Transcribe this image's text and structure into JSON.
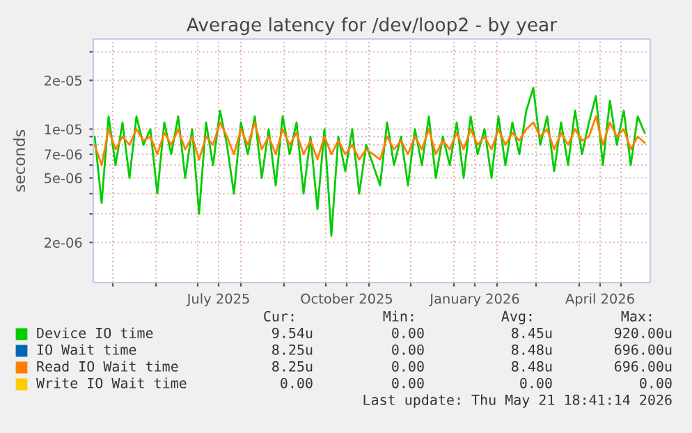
{
  "chart_data": {
    "type": "line",
    "title": "Average latency for /dev/loop2 - by year",
    "ylabel": "seconds",
    "x": [
      "2025-04-18",
      "2025-04-23",
      "2025-04-28",
      "2025-05-03",
      "2025-05-08",
      "2025-05-13",
      "2025-05-18",
      "2025-05-23",
      "2025-05-28",
      "2025-06-02",
      "2025-06-07",
      "2025-06-12",
      "2025-06-17",
      "2025-06-22",
      "2025-06-27",
      "2025-07-02",
      "2025-07-07",
      "2025-07-12",
      "2025-07-17",
      "2025-07-22",
      "2025-07-27",
      "2025-08-01",
      "2025-08-06",
      "2025-08-11",
      "2025-08-16",
      "2025-08-21",
      "2025-08-26",
      "2025-08-31",
      "2025-09-05",
      "2025-09-10",
      "2025-09-15",
      "2025-09-20",
      "2025-09-25",
      "2025-09-30",
      "2025-10-05",
      "2025-10-10",
      "2025-10-15",
      "2025-10-20",
      "2025-10-25",
      "2025-10-30",
      "2025-11-04",
      "2025-11-09",
      "2025-11-14",
      "2025-11-19",
      "2025-11-24",
      "2025-11-29",
      "2025-12-04",
      "2025-12-09",
      "2025-12-14",
      "2025-12-19",
      "2025-12-24",
      "2025-12-29",
      "2026-01-03",
      "2026-01-08",
      "2026-01-13",
      "2026-01-18",
      "2026-01-23",
      "2026-01-28",
      "2026-02-02",
      "2026-02-07",
      "2026-02-12",
      "2026-02-17",
      "2026-02-22",
      "2026-02-27",
      "2026-03-04",
      "2026-03-09",
      "2026-03-14",
      "2026-03-19",
      "2026-03-24",
      "2026-03-29",
      "2026-04-03",
      "2026-04-08",
      "2026-04-13",
      "2026-04-18",
      "2026-04-23",
      "2026-04-28",
      "2026-05-03",
      "2026-05-08",
      "2026-05-13",
      "2026-05-18"
    ],
    "series": [
      {
        "name": "Device IO time",
        "color": "#00cc00",
        "values": [
          9e-06,
          3.5e-06,
          1.2e-05,
          6e-06,
          1.1e-05,
          5e-06,
          1.2e-05,
          8e-06,
          1e-05,
          4e-06,
          1.1e-05,
          7e-06,
          1.2e-05,
          5e-06,
          1e-05,
          3e-06,
          1.1e-05,
          6e-06,
          1.3e-05,
          8e-06,
          4e-06,
          1.1e-05,
          7e-06,
          1.2e-05,
          5e-06,
          1e-05,
          4.5e-06,
          1.2e-05,
          7e-06,
          1.1e-05,
          4e-06,
          9e-06,
          3.2e-06,
          1e-05,
          2.2e-06,
          9e-06,
          5.5e-06,
          1e-05,
          4e-06,
          8e-06,
          6e-06,
          4.5e-06,
          1.1e-05,
          6e-06,
          9e-06,
          4.5e-06,
          1e-05,
          6e-06,
          1.2e-05,
          5e-06,
          9e-06,
          6e-06,
          1.1e-05,
          5e-06,
          1.2e-05,
          7e-06,
          1e-05,
          5e-06,
          1.2e-05,
          6e-06,
          1.1e-05,
          7e-06,
          1.3e-05,
          1.8e-05,
          8e-06,
          1.2e-05,
          5.5e-06,
          1.1e-05,
          6e-06,
          1.3e-05,
          7e-06,
          1.1e-05,
          1.6e-05,
          6e-06,
          1.5e-05,
          8e-06,
          1.3e-05,
          6e-06,
          1.2e-05,
          9.5e-06
        ]
      },
      {
        "name": "IO Wait time",
        "color": "#0066b3",
        "values": [
          null,
          null,
          null,
          null,
          null,
          null,
          null,
          null,
          null,
          null,
          null,
          null,
          null,
          null,
          null,
          null,
          null,
          null,
          null,
          null,
          null,
          null,
          null,
          null,
          null,
          null,
          null,
          null,
          null,
          null,
          null,
          null,
          null,
          null,
          null,
          null,
          null,
          null,
          null,
          null,
          null,
          null,
          null,
          null,
          null,
          null,
          null,
          null,
          null,
          null,
          null,
          null,
          null,
          null,
          null,
          null,
          null,
          null,
          null,
          null,
          null,
          null,
          null,
          null,
          null,
          null,
          null,
          null,
          null,
          null,
          null,
          null,
          null,
          null,
          null,
          null,
          null,
          null,
          null,
          null
        ]
      },
      {
        "name": "Read IO Wait time",
        "color": "#ff8000",
        "values": [
          8e-06,
          6e-06,
          1e-05,
          7.5e-06,
          9e-06,
          8e-06,
          1e-05,
          8.5e-06,
          9e-06,
          7e-06,
          9.5e-06,
          8e-06,
          1e-05,
          7.5e-06,
          9e-06,
          6.5e-06,
          9e-06,
          8e-06,
          1.1e-05,
          9e-06,
          7e-06,
          1e-05,
          8e-06,
          1.1e-05,
          7.5e-06,
          9e-06,
          7e-06,
          1e-05,
          8e-06,
          9.5e-06,
          7e-06,
          8.5e-06,
          6.5e-06,
          9e-06,
          7e-06,
          8.5e-06,
          7e-06,
          8e-06,
          6.5e-06,
          7.5e-06,
          7e-06,
          6.5e-06,
          9e-06,
          7.5e-06,
          8.5e-06,
          7e-06,
          9e-06,
          7.5e-06,
          1e-05,
          7e-06,
          8.5e-06,
          7.5e-06,
          9.5e-06,
          7.5e-06,
          1e-05,
          8e-06,
          9e-06,
          7.5e-06,
          1e-05,
          8e-06,
          9.5e-06,
          8.5e-06,
          1e-05,
          1.1e-05,
          9e-06,
          1e-05,
          7.5e-06,
          9.5e-06,
          8e-06,
          1e-05,
          8.5e-06,
          9e-06,
          1.2e-05,
          8e-06,
          1.1e-05,
          9e-06,
          1e-05,
          7.5e-06,
          9e-06,
          8.25e-06
        ]
      },
      {
        "name": "Write IO Wait time",
        "color": "#ffcc00",
        "values": [
          null,
          null,
          null,
          null,
          null,
          null,
          null,
          null,
          null,
          null,
          null,
          null,
          null,
          null,
          null,
          null,
          null,
          null,
          null,
          null,
          null,
          null,
          null,
          null,
          null,
          null,
          null,
          null,
          null,
          null,
          null,
          null,
          null,
          null,
          null,
          null,
          null,
          null,
          null,
          null,
          null,
          null,
          null,
          null,
          null,
          null,
          null,
          null,
          null,
          null,
          null,
          null,
          null,
          null,
          null,
          null,
          null,
          null,
          null,
          null,
          null,
          null,
          null,
          null,
          null,
          null,
          null,
          null,
          null,
          null,
          null,
          null,
          null,
          null,
          null,
          null,
          null,
          null,
          null,
          null
        ]
      }
    ],
    "xlim": [
      "2025-04-17",
      "2026-05-22"
    ],
    "xticks": [
      {
        "value": "2025-05-01",
        "label": null
      },
      {
        "value": "2025-06-01",
        "label": null
      },
      {
        "value": "2025-07-01",
        "label": null
      },
      {
        "value": "2025-07-16",
        "label": "July 2025"
      },
      {
        "value": "2025-08-01",
        "label": null
      },
      {
        "value": "2025-09-01",
        "label": null
      },
      {
        "value": "2025-10-01",
        "label": null
      },
      {
        "value": "2025-10-16",
        "label": "October 2025"
      },
      {
        "value": "2025-11-01",
        "label": null
      },
      {
        "value": "2025-12-01",
        "label": null
      },
      {
        "value": "2026-01-01",
        "label": null
      },
      {
        "value": "2026-01-16",
        "label": "January 2026"
      },
      {
        "value": "2026-02-01",
        "label": null
      },
      {
        "value": "2026-03-01",
        "label": null
      },
      {
        "value": "2026-04-01",
        "label": null
      },
      {
        "value": "2026-04-16",
        "label": "April 2026"
      },
      {
        "value": "2026-05-01",
        "label": null
      }
    ],
    "ylim": [
      1.13e-06,
      3.6e-05
    ],
    "yticks": [
      2e-06,
      {
        "value": 3e-06,
        "label": null
      },
      {
        "value": 4e-06,
        "label": null
      },
      5e-06,
      {
        "value": 6e-06,
        "label": null
      },
      7e-06,
      {
        "value": 8e-06,
        "label": null
      },
      {
        "value": 9e-06,
        "label": null
      },
      1e-05,
      2e-05,
      {
        "value": 3e-05,
        "label": null
      }
    ],
    "log": "y",
    "grid": true,
    "legend": "bottom",
    "annotations": [
      "Cur:",
      "Min:",
      "Avg:",
      "Max:",
      "9.54u",
      "0.00",
      "8.45u",
      "920.00u",
      "8.25u",
      "0.00",
      "8.48u",
      "696.00u",
      "8.25u",
      "0.00",
      "8.48u",
      "696.00u",
      "0.00",
      "0.00",
      "0.00",
      "0.00",
      "Last update: Thu May 21 18:41:14 2026"
    ]
  }
}
